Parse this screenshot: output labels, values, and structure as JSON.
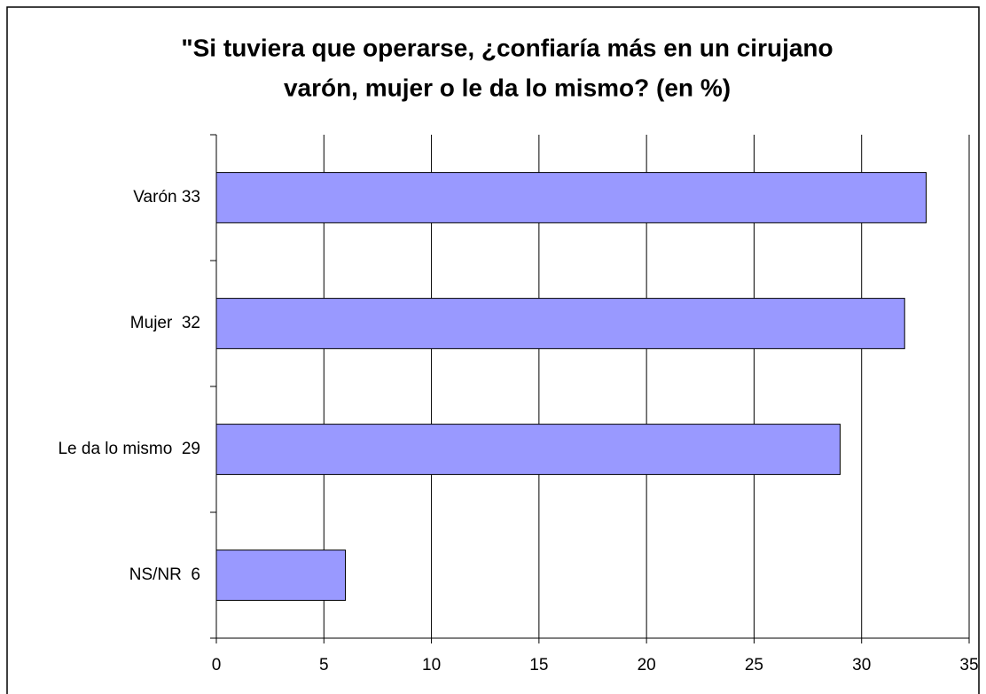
{
  "chart_data": {
    "type": "bar",
    "orientation": "horizontal",
    "title": [
      "\"Si tuviera que operarse, ¿confiaría más en un cirujano",
      "varón, mujer o le da lo mismo? (en %)"
    ],
    "categories": [
      "Varón 33",
      "Mujer  32",
      "Le da lo mismo  29",
      "NS/NR  6"
    ],
    "values": [
      33,
      32,
      29,
      6
    ],
    "color": "#9999ff",
    "xlim": [
      0,
      35
    ],
    "xticks": [
      0,
      5,
      10,
      15,
      20,
      25,
      30,
      35
    ],
    "grid": true
  }
}
